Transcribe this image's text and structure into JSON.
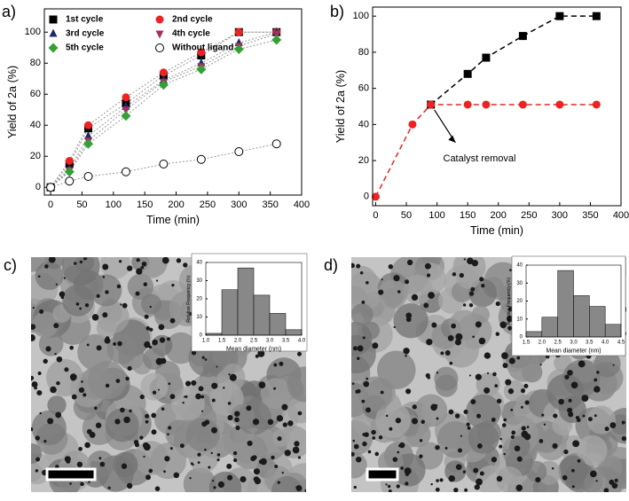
{
  "chart_data": [
    {
      "type": "line",
      "panel_label": "a)",
      "x_label": "Time (min)",
      "y_label": "Yield of 2a (%)",
      "x": [
        0,
        30,
        60,
        120,
        180,
        240,
        300,
        360
      ],
      "xlim": [
        -10,
        400
      ],
      "xticks": [
        0,
        50,
        100,
        150,
        200,
        250,
        300,
        350,
        400
      ],
      "ylim": [
        -5,
        115
      ],
      "yticks": [
        0,
        20,
        40,
        60,
        80,
        100
      ],
      "linestyle": "dotted",
      "series": [
        {
          "name": "1st cycle",
          "color": "#000000",
          "marker": "square",
          "values": [
            0,
            15,
            38,
            54,
            72,
            85,
            100,
            100
          ]
        },
        {
          "name": "2nd cycle",
          "color": "#ee2222",
          "marker": "circle",
          "values": [
            0,
            17,
            40,
            58,
            74,
            87,
            100,
            100
          ]
        },
        {
          "name": "3rd cycle",
          "color": "#1a2a6a",
          "marker": "triangle-up",
          "values": [
            0,
            12,
            33,
            52,
            69,
            80,
            93,
            100
          ]
        },
        {
          "name": "4th cycle",
          "color": "#a03060",
          "marker": "triangle-down",
          "values": [
            0,
            11,
            30,
            50,
            68,
            78,
            91,
            99
          ]
        },
        {
          "name": "5th cycle",
          "color": "#33a033",
          "marker": "diamond",
          "values": [
            0,
            10,
            28,
            46,
            66,
            76,
            89,
            95
          ]
        },
        {
          "name": "Without ligand",
          "color": "#000000",
          "marker": "open-circle",
          "values": [
            0,
            4,
            7,
            10,
            15,
            18,
            23,
            28
          ]
        }
      ]
    },
    {
      "type": "line",
      "panel_label": "b)",
      "x_label": "Time (min)",
      "y_label": "Yield of 2a (%)",
      "annotation": "Catalyst removal",
      "xlim": [
        -5,
        400
      ],
      "xticks": [
        0,
        50,
        100,
        150,
        200,
        250,
        300,
        350,
        400
      ],
      "ylim": [
        -5,
        105
      ],
      "yticks": [
        0,
        20,
        40,
        60,
        80,
        100
      ],
      "linestyle": "dashed",
      "series": [
        {
          "color": "#000000",
          "marker": "square",
          "x": [
            90,
            150,
            180,
            240,
            300,
            360
          ],
          "values": [
            51,
            68,
            77,
            89,
            100,
            100
          ]
        },
        {
          "color": "#ee2222",
          "marker": "circle",
          "x": [
            0,
            60,
            90,
            150,
            180,
            240,
            300,
            360
          ],
          "values": [
            0,
            40,
            51,
            51,
            51,
            51,
            51,
            51
          ]
        }
      ]
    },
    {
      "type": "histogram",
      "panel_label": "c)",
      "x_label": "Mean diameter (nm)",
      "y_label": "Relative Frequency (%)",
      "color": "#888888",
      "bins": [
        1.0,
        1.5,
        2.0,
        2.5,
        3.0,
        3.5,
        4.0
      ],
      "values": [
        1,
        25,
        37,
        22,
        12,
        3
      ],
      "xlim": [
        1.0,
        4.0
      ],
      "xticks": [
        {
          "value": 1.0,
          "label": "1.0"
        },
        {
          "value": 1.5,
          "label": "1.5"
        },
        {
          "value": 2.0,
          "label": "2.0"
        },
        {
          "value": 2.5,
          "label": "2.5"
        },
        {
          "value": 3.0,
          "label": "3.0"
        },
        {
          "value": 3.5,
          "label": "3.5"
        },
        {
          "value": 4.0,
          "label": "4.0"
        }
      ],
      "ylim": [
        0,
        40
      ],
      "yticks": [
        0,
        10,
        20,
        30,
        40
      ]
    },
    {
      "type": "histogram",
      "panel_label": "d)",
      "x_label": "Mean diameter (nm)",
      "y_label": "Relative Frequency (%)",
      "color": "#888888",
      "bins": [
        1.5,
        2.0,
        2.5,
        3.0,
        3.5,
        4.0,
        4.5
      ],
      "values": [
        3,
        11,
        37,
        23,
        17,
        7
      ],
      "xlim": [
        1.5,
        4.5
      ],
      "xticks": [
        {
          "value": 1.5,
          "label": "1.5"
        },
        {
          "value": 2.0,
          "label": "2.0"
        },
        {
          "value": 2.5,
          "label": "2.5"
        },
        {
          "value": 3.0,
          "label": "3.0"
        },
        {
          "value": 3.5,
          "label": "3.5"
        },
        {
          "value": 4.0,
          "label": "4.0"
        },
        {
          "value": 4.5,
          "label": "4.5"
        }
      ],
      "ylim": [
        0,
        40
      ],
      "yticks": [
        0,
        10,
        20,
        30,
        40
      ]
    }
  ]
}
